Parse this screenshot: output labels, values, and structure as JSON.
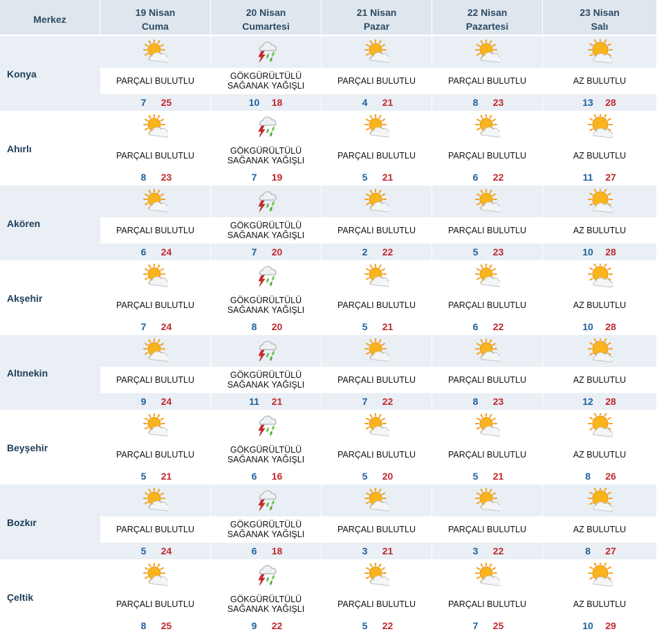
{
  "header": {
    "merkez_label": "Merkez",
    "days": [
      {
        "date": "19 Nisan",
        "weekday": "Cuma"
      },
      {
        "date": "20 Nisan",
        "weekday": "Cumartesi"
      },
      {
        "date": "21 Nisan",
        "weekday": "Pazar"
      },
      {
        "date": "22 Nisan",
        "weekday": "Pazartesi"
      },
      {
        "date": "23 Nisan",
        "weekday": "Salı"
      }
    ]
  },
  "colors": {
    "header_bg": "#dfe7ee",
    "band_bg": "#e9eff5",
    "min_temp": "#1f5f9c",
    "max_temp": "#c0282f"
  },
  "cities": [
    {
      "name": "Konya",
      "days": [
        {
          "icon": "partly-cloudy-icon",
          "line1": "PARÇALI BULUTLU",
          "line2": "",
          "min": "7",
          "max": "25"
        },
        {
          "icon": "thunderstorm-icon",
          "line1": "GÖKGÜRÜLTÜLÜ",
          "line2": "SAĞANAK YAĞIŞLI",
          "min": "10",
          "max": "18"
        },
        {
          "icon": "partly-cloudy-icon",
          "line1": "PARÇALI BULUTLU",
          "line2": "",
          "min": "4",
          "max": "21"
        },
        {
          "icon": "partly-cloudy-icon",
          "line1": "PARÇALI BULUTLU",
          "line2": "",
          "min": "8",
          "max": "23"
        },
        {
          "icon": "few-clouds-icon",
          "line1": "AZ BULUTLU",
          "line2": "",
          "min": "13",
          "max": "28"
        }
      ]
    },
    {
      "name": "Ahırlı",
      "days": [
        {
          "icon": "partly-cloudy-icon",
          "line1": "PARÇALI BULUTLU",
          "line2": "",
          "min": "8",
          "max": "23"
        },
        {
          "icon": "thunderstorm-icon",
          "line1": "GÖKGÜRÜLTÜLÜ",
          "line2": "SAĞANAK YAĞIŞLI",
          "min": "7",
          "max": "19"
        },
        {
          "icon": "partly-cloudy-icon",
          "line1": "PARÇALI BULUTLU",
          "line2": "",
          "min": "5",
          "max": "21"
        },
        {
          "icon": "partly-cloudy-icon",
          "line1": "PARÇALI BULUTLU",
          "line2": "",
          "min": "6",
          "max": "22"
        },
        {
          "icon": "few-clouds-icon",
          "line1": "AZ BULUTLU",
          "line2": "",
          "min": "11",
          "max": "27"
        }
      ]
    },
    {
      "name": "Akören",
      "days": [
        {
          "icon": "partly-cloudy-icon",
          "line1": "PARÇALI BULUTLU",
          "line2": "",
          "min": "6",
          "max": "24"
        },
        {
          "icon": "thunderstorm-icon",
          "line1": "GÖKGÜRÜLTÜLÜ",
          "line2": "SAĞANAK YAĞIŞLI",
          "min": "7",
          "max": "20"
        },
        {
          "icon": "partly-cloudy-icon",
          "line1": "PARÇALI BULUTLU",
          "line2": "",
          "min": "2",
          "max": "22"
        },
        {
          "icon": "partly-cloudy-icon",
          "line1": "PARÇALI BULUTLU",
          "line2": "",
          "min": "5",
          "max": "23"
        },
        {
          "icon": "few-clouds-icon",
          "line1": "AZ BULUTLU",
          "line2": "",
          "min": "10",
          "max": "28"
        }
      ]
    },
    {
      "name": "Akşehir",
      "days": [
        {
          "icon": "partly-cloudy-icon",
          "line1": "PARÇALI BULUTLU",
          "line2": "",
          "min": "7",
          "max": "24"
        },
        {
          "icon": "thunderstorm-icon",
          "line1": "GÖKGÜRÜLTÜLÜ",
          "line2": "SAĞANAK YAĞIŞLI",
          "min": "8",
          "max": "20"
        },
        {
          "icon": "partly-cloudy-icon",
          "line1": "PARÇALI BULUTLU",
          "line2": "",
          "min": "5",
          "max": "21"
        },
        {
          "icon": "partly-cloudy-icon",
          "line1": "PARÇALI BULUTLU",
          "line2": "",
          "min": "6",
          "max": "22"
        },
        {
          "icon": "few-clouds-icon",
          "line1": "AZ BULUTLU",
          "line2": "",
          "min": "10",
          "max": "28"
        }
      ]
    },
    {
      "name": "Altınekin",
      "days": [
        {
          "icon": "partly-cloudy-icon",
          "line1": "PARÇALI BULUTLU",
          "line2": "",
          "min": "9",
          "max": "24"
        },
        {
          "icon": "thunderstorm-icon",
          "line1": "GÖKGÜRÜLTÜLÜ",
          "line2": "SAĞANAK YAĞIŞLI",
          "min": "11",
          "max": "21"
        },
        {
          "icon": "partly-cloudy-icon",
          "line1": "PARÇALI BULUTLU",
          "line2": "",
          "min": "7",
          "max": "22"
        },
        {
          "icon": "partly-cloudy-icon",
          "line1": "PARÇALI BULUTLU",
          "line2": "",
          "min": "8",
          "max": "23"
        },
        {
          "icon": "few-clouds-icon",
          "line1": "AZ BULUTLU",
          "line2": "",
          "min": "12",
          "max": "28"
        }
      ]
    },
    {
      "name": "Beyşehir",
      "days": [
        {
          "icon": "partly-cloudy-icon",
          "line1": "PARÇALI BULUTLU",
          "line2": "",
          "min": "5",
          "max": "21"
        },
        {
          "icon": "thunderstorm-icon",
          "line1": "GÖKGÜRÜLTÜLÜ",
          "line2": "SAĞANAK YAĞIŞLI",
          "min": "6",
          "max": "16"
        },
        {
          "icon": "partly-cloudy-icon",
          "line1": "PARÇALI BULUTLU",
          "line2": "",
          "min": "5",
          "max": "20"
        },
        {
          "icon": "partly-cloudy-icon",
          "line1": "PARÇALI BULUTLU",
          "line2": "",
          "min": "5",
          "max": "21"
        },
        {
          "icon": "few-clouds-icon",
          "line1": "AZ BULUTLU",
          "line2": "",
          "min": "8",
          "max": "26"
        }
      ]
    },
    {
      "name": "Bozkır",
      "days": [
        {
          "icon": "partly-cloudy-icon",
          "line1": "PARÇALI BULUTLU",
          "line2": "",
          "min": "5",
          "max": "24"
        },
        {
          "icon": "thunderstorm-icon",
          "line1": "GÖKGÜRÜLTÜLÜ",
          "line2": "SAĞANAK YAĞIŞLI",
          "min": "6",
          "max": "18"
        },
        {
          "icon": "partly-cloudy-icon",
          "line1": "PARÇALI BULUTLU",
          "line2": "",
          "min": "3",
          "max": "21"
        },
        {
          "icon": "partly-cloudy-icon",
          "line1": "PARÇALI BULUTLU",
          "line2": "",
          "min": "3",
          "max": "22"
        },
        {
          "icon": "few-clouds-icon",
          "line1": "AZ BULUTLU",
          "line2": "",
          "min": "8",
          "max": "27"
        }
      ]
    },
    {
      "name": "Çeltik",
      "days": [
        {
          "icon": "partly-cloudy-icon",
          "line1": "PARÇALI BULUTLU",
          "line2": "",
          "min": "8",
          "max": "25"
        },
        {
          "icon": "thunderstorm-icon",
          "line1": "GÖKGÜRÜLTÜLÜ",
          "line2": "SAĞANAK YAĞIŞLI",
          "min": "9",
          "max": "22"
        },
        {
          "icon": "partly-cloudy-icon",
          "line1": "PARÇALI BULUTLU",
          "line2": "",
          "min": "5",
          "max": "22"
        },
        {
          "icon": "partly-cloudy-icon",
          "line1": "PARÇALI BULUTLU",
          "line2": "",
          "min": "7",
          "max": "25"
        },
        {
          "icon": "few-clouds-icon",
          "line1": "AZ BULUTLU",
          "line2": "",
          "min": "10",
          "max": "29"
        }
      ]
    }
  ]
}
